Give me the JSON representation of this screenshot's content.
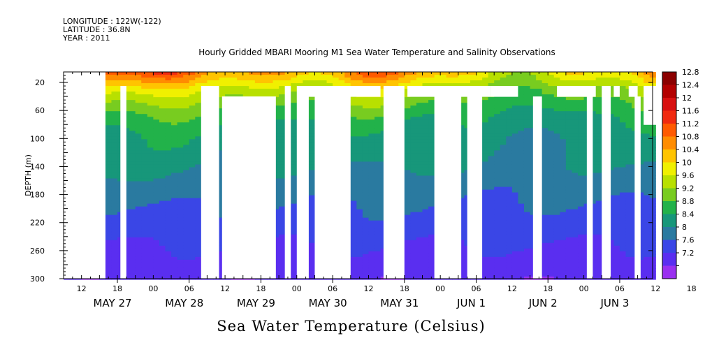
{
  "header": {
    "longitude": "LONGITUDE : 122W(-122)",
    "latitude": "LATITUDE : 36.8N",
    "year": "YEAR : 2011"
  },
  "chart_data": {
    "type": "heatmap",
    "title": "Hourly Gridded MBARI Mooring M1 Sea Water Temperature and Salinity Observations",
    "bottom_title": "Sea Water Temperature (Celsius)",
    "ylabel": "DEPTH (m)",
    "ylim": [
      300,
      5
    ],
    "y_ticks": [
      20,
      60,
      100,
      140,
      180,
      220,
      260,
      300
    ],
    "x_range_hours": [
      "2011-05-26T06:00",
      "2011-06-03T11:00"
    ],
    "x_hour_ticks": [
      "12",
      "18",
      "00",
      "06",
      "12",
      "18",
      "00",
      "06",
      "12",
      "18",
      "00",
      "06",
      "12",
      "18",
      "00",
      "06",
      "12",
      "18",
      "00",
      "06",
      "12",
      "18",
      "00",
      "06",
      "12",
      "18",
      "00",
      "06"
    ],
    "x_date_labels": [
      "MAY 27",
      "MAY 28",
      "MAY 29",
      "MAY 30",
      "MAY 31",
      "JUN  1",
      "JUN  2",
      "JUN  3"
    ],
    "colorbar": {
      "levels": [
        12.8,
        12.4,
        12,
        11.6,
        11.2,
        10.8,
        10.4,
        10,
        9.6,
        9.2,
        8.8,
        8.4,
        8,
        7.6,
        7.2
      ],
      "colors": [
        "#8b0000",
        "#b30000",
        "#d81010",
        "#f02a10",
        "#ff5a00",
        "#ff8c00",
        "#ffc400",
        "#f0f000",
        "#b8e000",
        "#78cc20",
        "#22b24a",
        "#17977a",
        "#2a7aa0",
        "#3a46e6",
        "#5a2ef0",
        "#9a30f0"
      ]
    },
    "profile": [
      {
        "depth": 5,
        "temp": 10.8
      },
      {
        "depth": 15,
        "temp": 10.4
      },
      {
        "depth": 30,
        "temp": 9.8
      },
      {
        "depth": 50,
        "temp": 9.3
      },
      {
        "depth": 70,
        "temp": 8.9
      },
      {
        "depth": 100,
        "temp": 8.6
      },
      {
        "depth": 140,
        "temp": 8.4
      },
      {
        "depth": 180,
        "temp": 8.1
      },
      {
        "depth": 220,
        "temp": 7.85
      },
      {
        "depth": 260,
        "temp": 7.55
      },
      {
        "depth": 300,
        "temp": 7.3
      }
    ],
    "missing_blocks_hours_depth": [
      [
        0,
        14,
        5,
        300
      ],
      [
        19,
        21,
        25,
        300
      ],
      [
        43,
        43,
        25,
        300
      ],
      [
        46,
        52,
        25,
        300
      ],
      [
        53,
        71,
        40,
        300
      ],
      [
        74,
        76,
        25,
        300
      ],
      [
        78,
        82,
        25,
        300
      ],
      [
        79,
        106,
        25,
        40
      ],
      [
        84,
        96,
        40,
        300
      ],
      [
        107,
        114,
        25,
        300
      ],
      [
        115,
        143,
        25,
        40
      ],
      [
        124,
        133,
        40,
        300
      ],
      [
        135,
        140,
        40,
        300
      ],
      [
        143,
        152,
        25,
        40
      ],
      [
        157,
        160,
        40,
        300
      ],
      [
        165,
        178,
        25,
        40
      ],
      [
        175,
        177,
        40,
        300
      ],
      [
        180,
        183,
        25,
        300
      ],
      [
        184,
        186,
        25,
        40
      ],
      [
        189,
        192,
        25,
        40
      ],
      [
        191,
        193,
        40,
        300
      ],
      [
        194,
        275,
        25,
        80
      ],
      [
        202,
        221,
        80,
        300
      ],
      [
        226,
        228,
        80,
        300
      ],
      [
        232,
        242,
        80,
        300
      ],
      [
        255,
        260,
        80,
        300
      ],
      [
        265,
        267,
        80,
        300
      ],
      [
        271,
        273,
        80,
        300
      ],
      [
        282,
        285,
        80,
        300
      ],
      [
        291,
        293,
        25,
        300
      ],
      [
        294,
        296,
        5,
        300
      ]
    ]
  }
}
